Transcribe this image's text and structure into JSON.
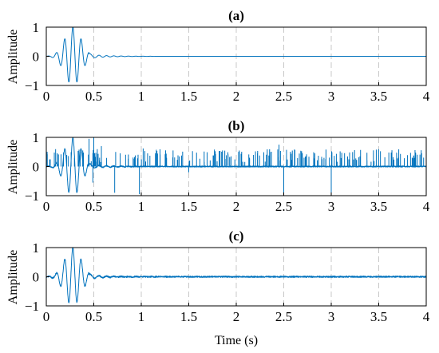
{
  "figure": {
    "xlabel": "Time (s)",
    "line_color": "#0072BD",
    "grid_color": "#c8c8c8"
  },
  "chart_data": [
    {
      "type": "line",
      "title": "(a)",
      "xlabel": "",
      "ylabel": "Amplitude",
      "xlim": [
        0,
        4
      ],
      "ylim": [
        -1,
        1
      ],
      "xticks": [
        "0",
        "0.5",
        "1",
        "1.5",
        "2",
        "2.5",
        "3",
        "3.5",
        "4"
      ],
      "yticks": [
        "1",
        "0",
        "−1"
      ],
      "grid": "vertical dashed",
      "series": [
        {
          "kind": "clean",
          "points": [
            [
              0,
              0
            ],
            [
              0.1,
              0
            ],
            [
              0.15,
              0.1
            ],
            [
              0.18,
              -0.6
            ],
            [
              0.21,
              0.75
            ],
            [
              0.24,
              -0.95
            ],
            [
              0.27,
              0.98
            ],
            [
              0.3,
              -1.0
            ],
            [
              0.33,
              0.95
            ],
            [
              0.36,
              -0.75
            ],
            [
              0.39,
              0.5
            ],
            [
              0.42,
              -0.25
            ],
            [
              0.45,
              0.12
            ],
            [
              0.48,
              -0.08
            ],
            [
              0.55,
              0.04
            ],
            [
              0.7,
              0.02
            ],
            [
              0.9,
              0.01
            ],
            [
              1.2,
              0.0
            ],
            [
              4,
              0
            ]
          ]
        }
      ]
    },
    {
      "type": "line",
      "title": "(b)",
      "xlabel": "",
      "ylabel": "Amplitude",
      "xlim": [
        0,
        4
      ],
      "ylim": [
        -1,
        1
      ],
      "xticks": [
        "0",
        "0.5",
        "1",
        "1.5",
        "2",
        "2.5",
        "3",
        "3.5",
        "4"
      ],
      "yticks": [
        "1",
        "0",
        "−1"
      ],
      "grid": "vertical dashed",
      "series": [
        {
          "kind": "impulsive-noise",
          "points": [
            [
              0,
              0
            ],
            [
              0.1,
              0.05
            ],
            [
              0.15,
              0.2
            ],
            [
              0.18,
              -0.7
            ],
            [
              0.21,
              0.9
            ],
            [
              0.24,
              -1.0
            ],
            [
              0.27,
              1.0
            ],
            [
              0.3,
              -1.0
            ],
            [
              0.33,
              1.0
            ],
            [
              0.36,
              -0.8
            ],
            [
              0.39,
              0.6
            ],
            [
              0.42,
              -0.3
            ],
            [
              0.45,
              0.15
            ],
            [
              0.48,
              -0.1
            ],
            [
              0.5,
              1.0
            ],
            [
              0.6,
              0.05
            ],
            [
              0.72,
              -0.9
            ],
            [
              0.98,
              -0.95
            ],
            [
              1.0,
              0.5
            ],
            [
              2.5,
              -0.95
            ],
            [
              2.45,
              0.7
            ],
            [
              3.0,
              -0.95
            ],
            [
              4,
              0
            ]
          ]
        }
      ]
    },
    {
      "type": "line",
      "title": "(c)",
      "xlabel": "Time (s)",
      "ylabel": "Amplitude",
      "xlim": [
        0,
        4
      ],
      "ylim": [
        -1,
        1
      ],
      "xticks": [
        "0",
        "0.5",
        "1",
        "1.5",
        "2",
        "2.5",
        "3",
        "3.5",
        "4"
      ],
      "yticks": [
        "1",
        "0",
        "−1"
      ],
      "grid": "vertical dashed",
      "series": [
        {
          "kind": "denoised",
          "points": [
            [
              0,
              0
            ],
            [
              0.1,
              0
            ],
            [
              0.15,
              0.1
            ],
            [
              0.18,
              -0.6
            ],
            [
              0.21,
              0.75
            ],
            [
              0.24,
              -0.95
            ],
            [
              0.27,
              0.98
            ],
            [
              0.3,
              -1.0
            ],
            [
              0.33,
              0.95
            ],
            [
              0.36,
              -0.75
            ],
            [
              0.39,
              0.5
            ],
            [
              0.42,
              -0.25
            ],
            [
              0.45,
              0.12
            ],
            [
              0.48,
              -0.08
            ],
            [
              0.55,
              0.04
            ],
            [
              0.8,
              0.03
            ],
            [
              1.5,
              0.02
            ],
            [
              2.5,
              0.03
            ],
            [
              3.0,
              -0.05
            ],
            [
              3.5,
              0.03
            ],
            [
              4,
              0
            ]
          ]
        }
      ]
    }
  ]
}
